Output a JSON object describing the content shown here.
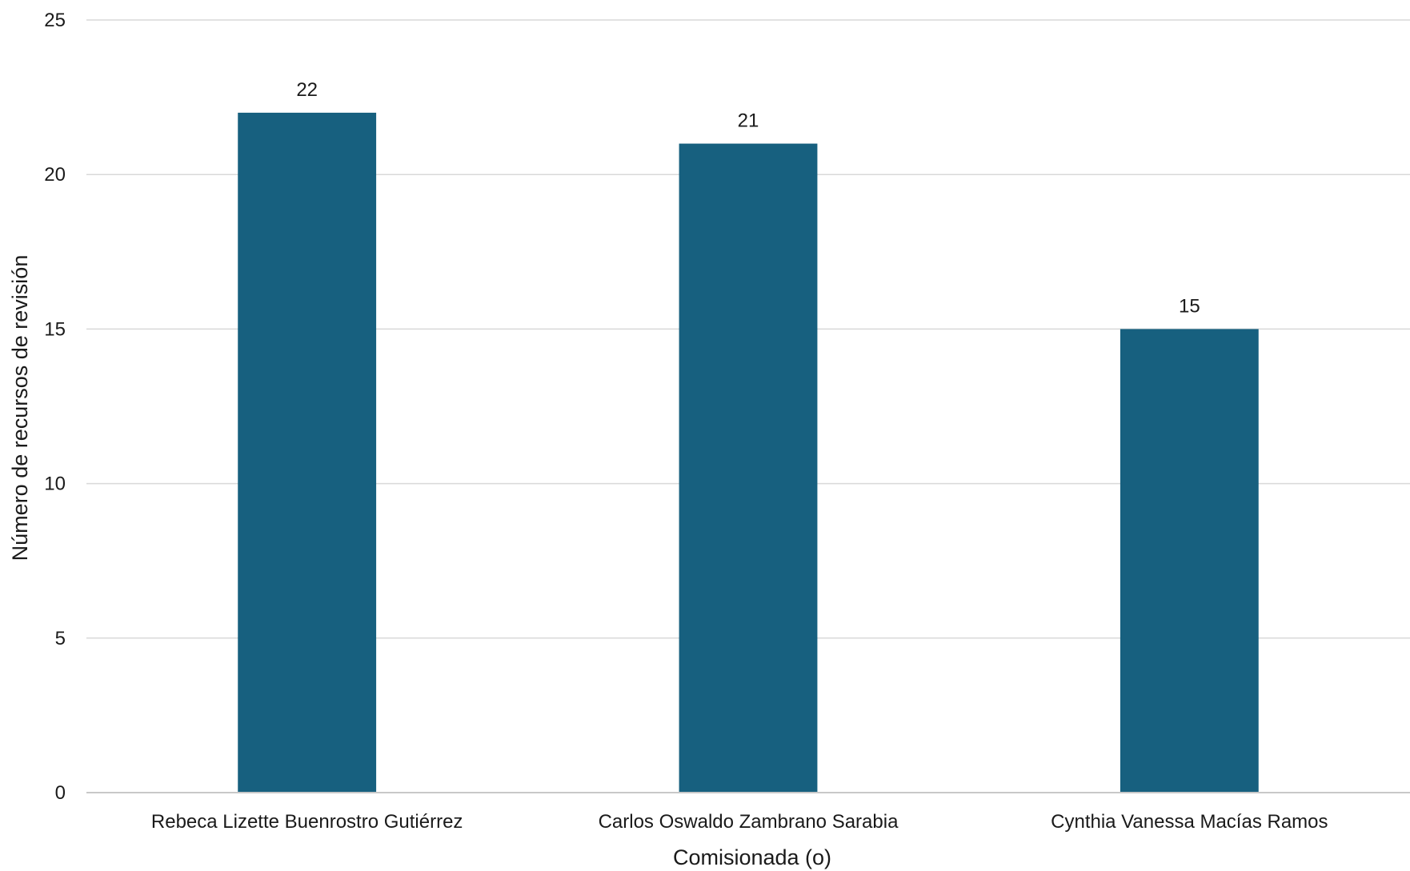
{
  "chart_data": {
    "type": "bar",
    "title": "",
    "xlabel": "Comisionada (o)",
    "ylabel": "Número de recursos de revisión",
    "categories": [
      "Rebeca Lizette Buenrostro Gutiérrez",
      "Carlos Oswaldo Zambrano Sarabia",
      "Cynthia Vanessa Macías Ramos"
    ],
    "values": [
      22,
      21,
      15
    ],
    "data_labels": [
      "22",
      "21",
      "15"
    ],
    "ylim": [
      0,
      25
    ],
    "yticks": [
      0,
      5,
      10,
      15,
      20,
      25
    ],
    "ytick_labels": [
      "0",
      "5",
      "10",
      "15",
      "20",
      "25"
    ],
    "grid": true,
    "legend": "none",
    "bar_color": "#17607f",
    "grid_color": "#d9d9d9",
    "axis_color": "#c8c8c8"
  }
}
